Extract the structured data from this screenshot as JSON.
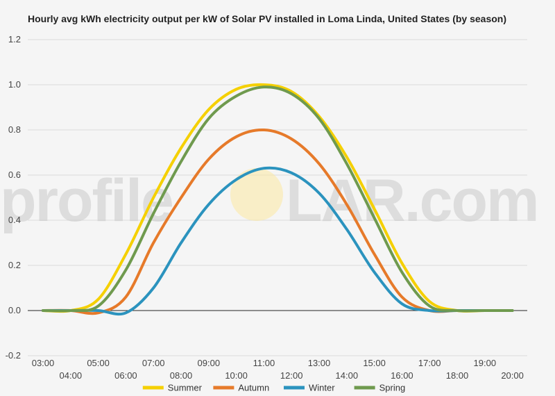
{
  "title": "Hourly avg kWh electricity output per kW of Solar PV installed in Loma Linda, United States (by season)",
  "watermark": {
    "left_text": "profile",
    "right_text": "LAR.com"
  },
  "chart_data": {
    "type": "line",
    "title": "Hourly avg kWh electricity output per kW of Solar PV installed in Loma Linda, United States (by season)",
    "xlabel": "",
    "ylabel": "",
    "x": [
      "03:00",
      "04:00",
      "05:00",
      "06:00",
      "07:00",
      "08:00",
      "09:00",
      "10:00",
      "11:00",
      "12:00",
      "13:00",
      "14:00",
      "15:00",
      "16:00",
      "17:00",
      "18:00",
      "19:00",
      "20:00"
    ],
    "ylim": [
      -0.2,
      1.2
    ],
    "yticks": [
      "-0.2",
      "0.0",
      "0.2",
      "0.4",
      "0.6",
      "0.8",
      "1.0",
      "1.2"
    ],
    "grid": true,
    "legend_position": "bottom",
    "series": [
      {
        "name": "Summer",
        "color": "#f5d000",
        "values": [
          0.0,
          0.0,
          0.05,
          0.25,
          0.5,
          0.72,
          0.89,
          0.98,
          1.0,
          0.97,
          0.86,
          0.68,
          0.45,
          0.21,
          0.04,
          0.0,
          0.0,
          0.0
        ]
      },
      {
        "name": "Autumn",
        "color": "#e67a2a",
        "values": [
          0.0,
          0.0,
          -0.01,
          0.06,
          0.3,
          0.5,
          0.67,
          0.77,
          0.8,
          0.76,
          0.65,
          0.47,
          0.25,
          0.06,
          0.0,
          0.0,
          0.0,
          0.0
        ]
      },
      {
        "name": "Winter",
        "color": "#2b93be",
        "values": [
          0.0,
          0.0,
          0.0,
          -0.01,
          0.1,
          0.3,
          0.47,
          0.58,
          0.63,
          0.61,
          0.52,
          0.36,
          0.17,
          0.03,
          0.0,
          0.0,
          0.0,
          0.0
        ]
      },
      {
        "name": "Spring",
        "color": "#6f9a4e",
        "values": [
          0.0,
          0.0,
          0.02,
          0.18,
          0.43,
          0.66,
          0.85,
          0.95,
          0.99,
          0.96,
          0.85,
          0.65,
          0.41,
          0.17,
          0.02,
          0.0,
          0.0,
          0.0
        ]
      }
    ]
  }
}
